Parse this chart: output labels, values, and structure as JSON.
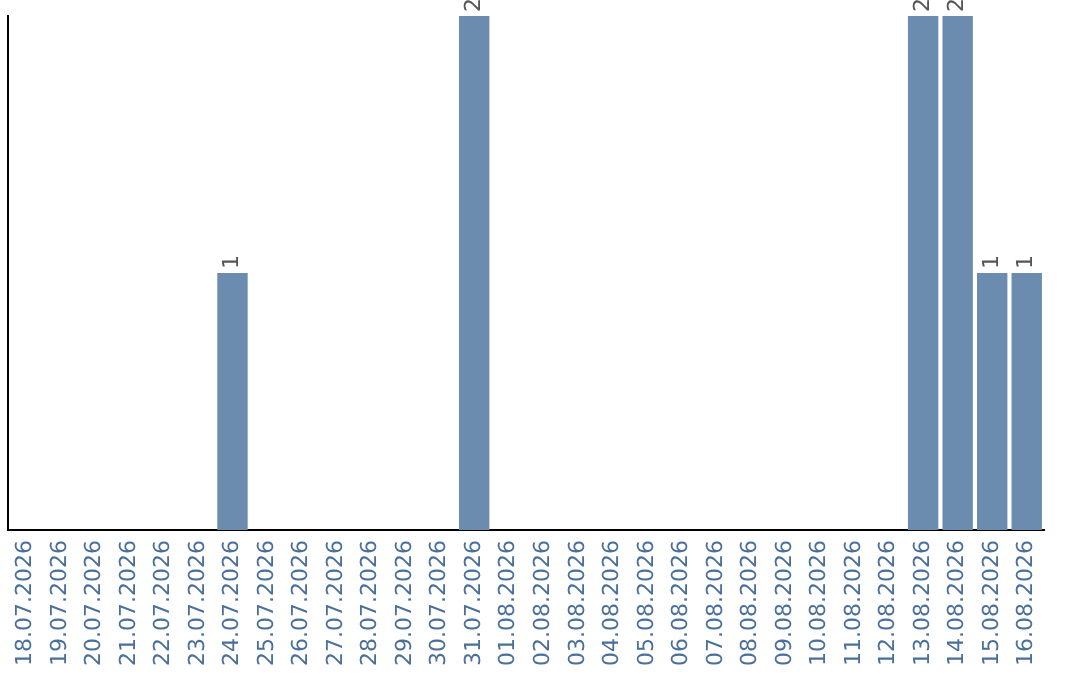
{
  "chart_data": {
    "type": "bar",
    "categories": [
      "18.07.2026",
      "19.07.2026",
      "20.07.2026",
      "21.07.2026",
      "22.07.2026",
      "23.07.2026",
      "24.07.2026",
      "25.07.2026",
      "26.07.2026",
      "27.07.2026",
      "28.07.2026",
      "29.07.2026",
      "30.07.2026",
      "31.07.2026",
      "01.08.2026",
      "02.08.2026",
      "03.08.2026",
      "04.08.2026",
      "05.08.2026",
      "06.08.2026",
      "07.08.2026",
      "08.08.2026",
      "09.08.2026",
      "10.08.2026",
      "11.08.2026",
      "12.08.2026",
      "13.08.2026",
      "14.08.2026",
      "15.08.2026",
      "16.08.2026"
    ],
    "values": [
      0,
      0,
      0,
      0,
      0,
      0,
      1,
      0,
      0,
      0,
      0,
      0,
      0,
      2,
      0,
      0,
      0,
      0,
      0,
      0,
      0,
      0,
      0,
      0,
      0,
      0,
      2,
      2,
      1,
      1
    ],
    "color": "#6b8cae",
    "ylim": [
      0,
      2
    ],
    "value_labels": [
      null,
      null,
      null,
      null,
      null,
      null,
      "1",
      null,
      null,
      null,
      null,
      null,
      null,
      "2",
      null,
      null,
      null,
      null,
      null,
      null,
      null,
      null,
      null,
      null,
      null,
      null,
      "2",
      "2",
      "1",
      "1"
    ],
    "grid": false,
    "legend": false,
    "tick_labels": "x"
  }
}
